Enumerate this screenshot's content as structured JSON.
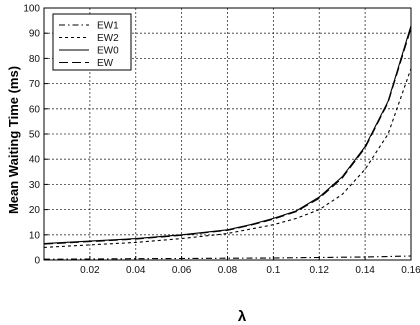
{
  "chart_data": {
    "type": "line",
    "xlabel": "λ",
    "ylabel": "Mean Waiting Time (ms)",
    "xlim": [
      0.0,
      0.16
    ],
    "ylim": [
      0,
      100
    ],
    "x_ticks": [
      0.02,
      0.04,
      0.06,
      0.08,
      0.1,
      0.12,
      0.14,
      0.16
    ],
    "x_tick_labels": [
      "0.02",
      "0.04",
      "0.06",
      "0.08",
      "0.1",
      "0.12",
      "0.14",
      "0.16"
    ],
    "y_ticks": [
      0,
      10,
      20,
      30,
      40,
      50,
      60,
      70,
      80,
      90,
      100
    ],
    "y_tick_labels": [
      "0",
      "10",
      "20",
      "30",
      "40",
      "50",
      "60",
      "70",
      "80",
      "90",
      "100"
    ],
    "grid": true,
    "legend_position": "top-left",
    "series": [
      {
        "name": "EW1",
        "style": "dash-dot",
        "color": "#000000",
        "x": [
          0.0,
          0.02,
          0.04,
          0.06,
          0.08,
          0.1,
          0.11,
          0.12,
          0.13,
          0.14,
          0.15,
          0.16
        ],
        "y": [
          0.3,
          0.4,
          0.5,
          0.6,
          0.7,
          0.8,
          0.9,
          1.0,
          1.1,
          1.2,
          1.4,
          1.6
        ]
      },
      {
        "name": "EW2",
        "style": "dashed",
        "color": "#000000",
        "x": [
          0.0,
          0.02,
          0.04,
          0.06,
          0.08,
          0.1,
          0.11,
          0.12,
          0.13,
          0.14,
          0.15,
          0.16
        ],
        "y": [
          5,
          6,
          7,
          8.5,
          10.5,
          14,
          16.5,
          20,
          26,
          36,
          50,
          76
        ]
      },
      {
        "name": "EW0",
        "style": "solid",
        "color": "#000000",
        "x": [
          0.0,
          0.02,
          0.04,
          0.06,
          0.08,
          0.09,
          0.1,
          0.11,
          0.12,
          0.13,
          0.14,
          0.15,
          0.16
        ],
        "y": [
          6.5,
          7.5,
          8.5,
          10,
          12,
          14,
          16.5,
          19.5,
          25,
          33,
          45,
          63,
          93
        ]
      },
      {
        "name": "EW",
        "style": "long-dash",
        "color": "#000000",
        "x": [
          0.0,
          0.02,
          0.04,
          0.06,
          0.08,
          0.09,
          0.1,
          0.11,
          0.12,
          0.13,
          0.14,
          0.15,
          0.16
        ],
        "y": [
          6.3,
          7.3,
          8.3,
          9.8,
          11.8,
          13.8,
          16.2,
          19.2,
          24.5,
          32.5,
          44.5,
          62.5,
          92
        ]
      }
    ]
  }
}
